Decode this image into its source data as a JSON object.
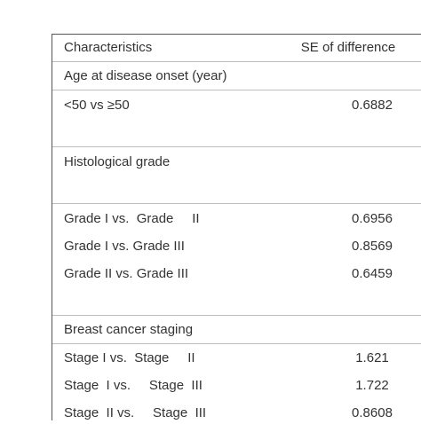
{
  "table": {
    "header": {
      "characteristics": "Characteristics",
      "se_of_difference": "SE of difference"
    },
    "sections": [
      {
        "title": "Age at disease onset (year)",
        "rows": [
          {
            "label": "<50 vs ≥50",
            "value": "0.6882"
          }
        ]
      },
      {
        "title": "Histological grade",
        "rows": [
          {
            "label": "Grade I vs.  Grade     II",
            "value": "0.6956"
          },
          {
            "label": "Grade I vs. Grade III",
            "value": "0.8569"
          },
          {
            "label": "Grade II vs. Grade III",
            "value": "0.6459"
          }
        ]
      },
      {
        "title": "Breast cancer staging",
        "rows": [
          {
            "label": "Stage I vs.  Stage     II",
            "value": "1.621"
          },
          {
            "label": "Stage  I vs.     Stage  III",
            "value": "1.722"
          },
          {
            "label": "Stage  II vs.     Stage  III",
            "value": "0.8608"
          }
        ]
      }
    ]
  }
}
